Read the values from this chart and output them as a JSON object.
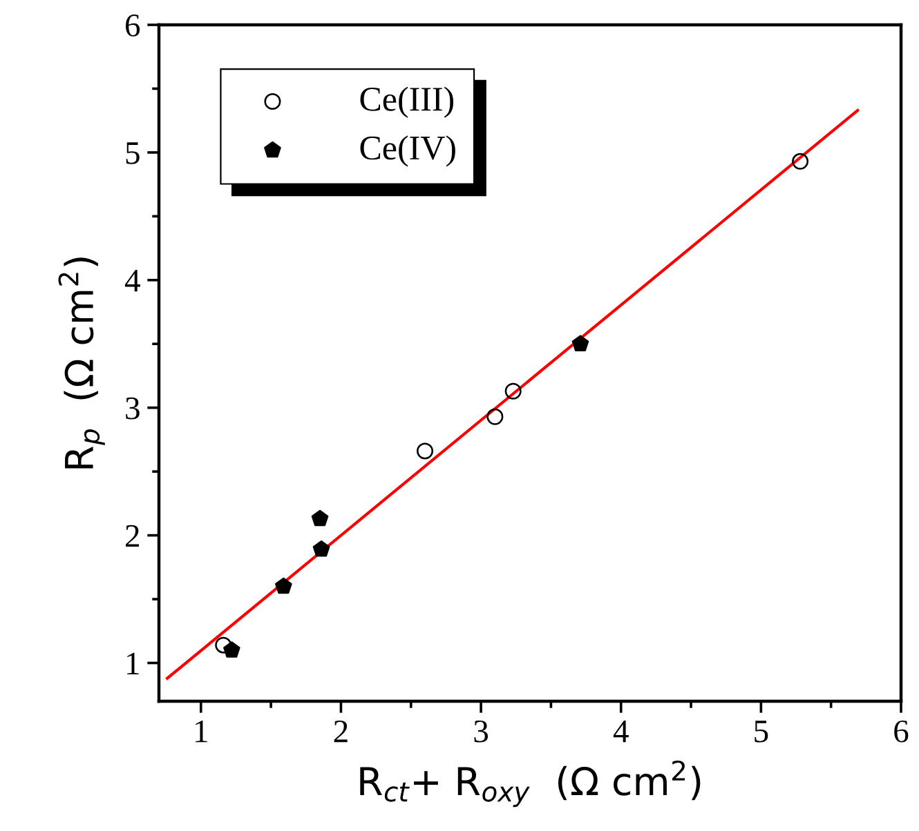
{
  "chart_data": {
    "type": "scatter",
    "xlabel": "R$_{ct}$+ R$_{oxy}$  (Ω cm$^{2}$)",
    "ylabel": "R$_{p}$  (Ω cm$^{2}$)",
    "xlim": [
      0.7,
      6
    ],
    "ylim": [
      0.7,
      6
    ],
    "xticks": [
      1,
      2,
      3,
      4,
      5,
      6
    ],
    "yticks": [
      1,
      2,
      3,
      4,
      5,
      6
    ],
    "grid": false,
    "legend": "top left",
    "series": [
      {
        "name": "Ce(III)",
        "color": "#000000",
        "marker": "circle",
        "x": [
          1.16,
          2.6,
          3.1,
          3.23,
          5.28
        ],
        "values": [
          1.14,
          2.66,
          2.93,
          3.13,
          4.93
        ]
      },
      {
        "name": "Ce(IV)",
        "color": "#000000",
        "x": [
          1.22,
          1.59,
          1.85,
          1.86,
          3.71
        ],
        "values": [
          1.1,
          1.6,
          2.13,
          1.89,
          3.5
        ]
      },
      {
        "type": "line",
        "color": "#ff0000",
        "marker": "none",
        "x": [
          0.76,
          5.69
        ],
        "values": [
          0.88,
          5.33
        ]
      }
    ]
  }
}
